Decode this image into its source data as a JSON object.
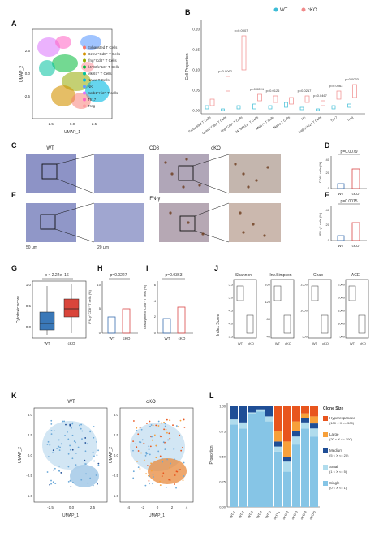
{
  "panel_letters": [
    "A",
    "B",
    "C",
    "D",
    "E",
    "F",
    "G",
    "H",
    "I",
    "J",
    "K",
    "L"
  ],
  "panel_a": {
    "xlabel": "UMAP_1",
    "ylabel": "UMAP_2",
    "xticks": [
      "-2.5",
      "0.0",
      "2.5"
    ],
    "yticks": [
      "2.5",
      "0.0",
      "-2.5"
    ],
    "legend": [
      {
        "label": "Exhausted T Cells",
        "color": "#f8766d"
      },
      {
        "label": "Gzma⁺Cd8⁺ T Cells",
        "color": "#d39200"
      },
      {
        "label": "Ifng⁺Cd8⁺ T Cells",
        "color": "#93aa00"
      },
      {
        "label": "Il4⁺Stfe¹13⁺ T Cells",
        "color": "#00ba38"
      },
      {
        "label": "Mki67⁺ T Cells",
        "color": "#00c19f"
      },
      {
        "label": "Naive T Cells",
        "color": "#00b9e3"
      },
      {
        "label": "NK",
        "color": "#619cff"
      },
      {
        "label": "Satb1⁺Ki2⁺ T cells",
        "color": "#db72fb"
      },
      {
        "label": "Th17",
        "color": "#ff61c3"
      },
      {
        "label": "Treg",
        "color": "#ff9aa2"
      }
    ]
  },
  "panel_b": {
    "legend": [
      {
        "label": "WT",
        "color": "#3dbcd6"
      },
      {
        "label": "cKO",
        "color": "#f08a8a"
      }
    ],
    "ylabel": "Cell Proportion",
    "yticks": [
      "0.00",
      "0.05",
      "0.10",
      "0.15",
      "0.20"
    ],
    "pvalues": [
      "p=0.0062",
      "p=0.0007",
      "p=0.0224",
      "p=0.0126",
      "p=0.0217",
      "p=0.0467",
      "p=0.0063",
      "p=0.0033"
    ],
    "categories": [
      "Exhausted T Cells",
      "Gzma⁺Cd8⁺ T Cells",
      "Ifng⁺Cd8⁺ T Cells",
      "Il4⁺Stfe13⁺ T Cells",
      "Mki67⁺ T Cells",
      "Naive T Cells",
      "NK",
      "Satb1⁺Ki2⁺ T Cells",
      "Th17",
      "Treg"
    ]
  },
  "panel_c": {
    "title_left": "WT",
    "title_center": "CD8",
    "title_right": "cKO"
  },
  "panel_e": {
    "title_center": "IFN-γ",
    "scale_left": "50 μm",
    "scale_mid": "20 μm"
  },
  "panel_d": {
    "pvalue": "p=0.0079",
    "ylabel": "CD8⁺ cells (%)",
    "xticks": [
      "WT",
      "cKO"
    ],
    "yticks": [
      "40",
      "20",
      "0"
    ]
  },
  "panel_f": {
    "pvalue": "p=0.0015",
    "ylabel": "IFN-γ⁺ cells (%)",
    "xticks": [
      "WT",
      "cKO"
    ],
    "yticks": [
      "40",
      "20",
      "0"
    ]
  },
  "panel_g": {
    "pvalue": "p < 2.22e−16",
    "ylabel": "Cytotoxic score",
    "xticks": [
      "WT",
      "cKO"
    ],
    "yticks": [
      "1.0",
      "0.5",
      "0.0"
    ]
  },
  "panel_h": {
    "pvalue": "p=0.0227",
    "ylabel": "IFN-γ⁺CD8⁺ T cells (%)",
    "xticks": [
      "WT",
      "cKO"
    ],
    "yticks": [
      "10",
      "5",
      "0"
    ]
  },
  "panel_i": {
    "pvalue": "p=0.0363",
    "ylabel": "Granzyme B⁺CD8⁺ T cells (%)",
    "xticks": [
      "WT",
      "cKO"
    ],
    "yticks": [
      "6",
      "4",
      "2",
      "0"
    ]
  },
  "panel_j": {
    "ylabel": "Index Score",
    "xticks": [
      "WT",
      "cKO"
    ],
    "metrics": [
      {
        "name": "Shannon",
        "yticks": [
          "5.5",
          "5.0",
          "4.5",
          "4.0",
          "3.5"
        ]
      },
      {
        "name": "Inv.Simpson",
        "yticks": [
          "160",
          "120",
          "80",
          "40"
        ]
      },
      {
        "name": "Chao",
        "yticks": [
          "1500",
          "1000",
          "500"
        ]
      },
      {
        "name": "ACE",
        "yticks": [
          "2500",
          "2000",
          "1500",
          "1000",
          "500"
        ]
      }
    ]
  },
  "panel_k": {
    "titles": [
      "WT",
      "cKO"
    ],
    "xlabel": "UMAP_1",
    "ylabel": "UMAP_2",
    "xticks_wt": [
      "-2.5",
      "0.0",
      "2.5"
    ],
    "xticks_cko": [
      "-4",
      "-2",
      "0",
      "2",
      "4"
    ],
    "yticks": [
      "5.0",
      "2.5",
      "0.0",
      "-2.5",
      "-5.0"
    ]
  },
  "panel_l": {
    "ylabel": "Proportion",
    "yticks": [
      "1.00",
      "0.75",
      "0.50",
      "0.25",
      "0.00"
    ],
    "samples": [
      "WT-1",
      "WT-2",
      "WT-3",
      "WT-4",
      "WT-5",
      "cKO-1",
      "cKO-2",
      "cKO-3",
      "cKO-4",
      "cKO-5"
    ],
    "legend_title": "Clone Size",
    "legend": [
      {
        "label": "Hyperexpanded",
        "range": "(100 < X <= 500)",
        "color": "#e8551e"
      },
      {
        "label": "Large",
        "range": "(20 < X <= 100)",
        "color": "#f7a03a"
      },
      {
        "label": "Medium",
        "range": "(5 < X <= 20)",
        "color": "#1f4e96"
      },
      {
        "label": "Small",
        "range": "(1 < X <= 5)",
        "color": "#b0dced"
      },
      {
        "label": "Single",
        "range": "(0 < X <= 1)",
        "color": "#86c5e6"
      }
    ]
  },
  "chart_data": [
    {
      "type": "bar",
      "title": "",
      "ylabel": "Proportion",
      "categories": [
        "WT-1",
        "WT-2",
        "WT-3",
        "WT-4",
        "WT-5",
        "cKO-1",
        "cKO-2",
        "cKO-3",
        "cKO-4",
        "cKO-5"
      ],
      "ylim": [
        0,
        1
      ],
      "series": [
        {
          "name": "Single (0 < X <= 1)",
          "values": [
            0.82,
            0.78,
            0.92,
            0.95,
            0.85,
            0.55,
            0.35,
            0.62,
            0.78,
            0.7
          ]
        },
        {
          "name": "Small (1 < X <= 5)",
          "values": [
            0.05,
            0.06,
            0.02,
            0.02,
            0.05,
            0.05,
            0.1,
            0.08,
            0.06,
            0.08
          ]
        },
        {
          "name": "Medium (5 < X <= 20)",
          "values": [
            0.13,
            0.16,
            0.06,
            0.03,
            0.1,
            0.05,
            0.05,
            0.05,
            0.04,
            0.05
          ]
        },
        {
          "name": "Large (20 < X <= 100)",
          "values": [
            0,
            0,
            0,
            0,
            0,
            0.1,
            0.15,
            0.1,
            0.05,
            0.07
          ]
        },
        {
          "name": "Hyperexpanded (100 < X <= 500)",
          "values": [
            0,
            0,
            0,
            0,
            0,
            0.25,
            0.35,
            0.15,
            0.07,
            0.1
          ]
        }
      ]
    }
  ]
}
